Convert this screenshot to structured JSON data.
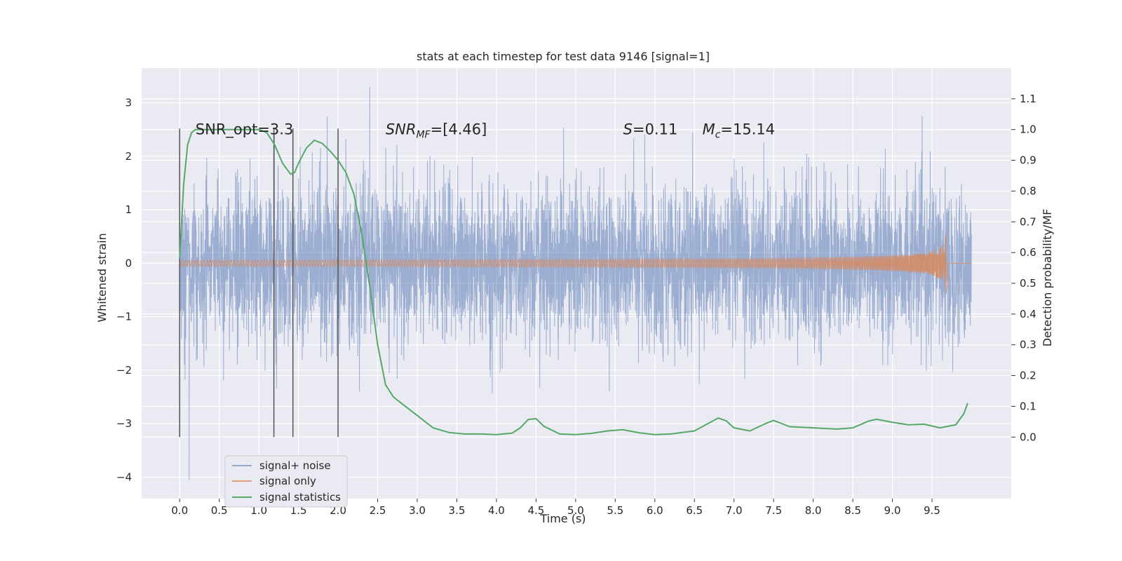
{
  "chart_data": {
    "type": "line",
    "title": "stats at each timestep for test data 9146 [signal=1]",
    "xlabel": "Time (s)",
    "ylabel_left": "Whitened strain",
    "ylabel_right": "Detection probability/MF",
    "xlim": [
      -0.48,
      10.5
    ],
    "ylim_left": [
      -4.4,
      3.65
    ],
    "ylim_right": [
      -0.2,
      1.2
    ],
    "xticks": [
      0.0,
      0.5,
      1.0,
      1.5,
      2.0,
      2.5,
      3.0,
      3.5,
      4.0,
      4.5,
      5.0,
      5.5,
      6.0,
      6.5,
      7.0,
      7.5,
      8.0,
      8.5,
      9.0,
      9.5
    ],
    "xtick_labels": [
      "0.0",
      "0.5",
      "1.0",
      "1.5",
      "2.0",
      "2.5",
      "3.0",
      "3.5",
      "4.0",
      "4.5",
      "5.0",
      "5.5",
      "6.0",
      "6.5",
      "7.0",
      "7.5",
      "8.0",
      "8.5",
      "9.0",
      "9.5"
    ],
    "yticks_left": [
      -4,
      -3,
      -2,
      -1,
      0,
      1,
      2,
      3
    ],
    "ytick_labels_left": [
      "−4",
      "−3",
      "−2",
      "−1",
      "0",
      "1",
      "2",
      "3"
    ],
    "yticks_right": [
      0.0,
      0.1,
      0.2,
      0.3,
      0.4,
      0.5,
      0.6,
      0.7,
      0.8,
      0.9,
      1.0,
      1.1
    ],
    "ytick_labels_right": [
      "0.0",
      "0.1",
      "0.2",
      "0.3",
      "0.4",
      "0.5",
      "0.6",
      "0.7",
      "0.8",
      "0.9",
      "1.0",
      "1.1"
    ],
    "grid": true,
    "legend_position": "lower-left",
    "annotations": [
      {
        "text": "SNR_opt=3.3",
        "x": 0.2,
        "y": 2.5
      },
      {
        "text": "SNR",
        "sub": "MF",
        "tail": "=[4.46]",
        "italic_head": true,
        "x": 2.6,
        "y": 2.5
      },
      {
        "text": "S",
        "tail": "=0.11",
        "italic_head": true,
        "x": 5.6,
        "y": 2.5
      },
      {
        "text": "M",
        "sub": "c",
        "tail": "=15.14",
        "italic_head": true,
        "x": 6.6,
        "y": 2.5
      }
    ],
    "vertical_lines_x": [
      0.0,
      1.19,
      1.43,
      2.0
    ],
    "vertical_lines_ylim": [
      -3.25,
      2.52
    ],
    "series": [
      {
        "name": "signal+ noise",
        "color": "#4c72b0",
        "kind": "noise",
        "x_range": [
          0.0,
          10.0
        ],
        "typical_envelope": [
          -1.45,
          1.35
        ],
        "max": 3.3,
        "min": -4.05
      },
      {
        "name": "signal only",
        "color": "#dd8452",
        "kind": "chirp",
        "x_range": [
          0.0,
          10.0
        ],
        "peak_time": 9.68,
        "peak_amplitude": 0.65
      },
      {
        "name": "signal statistics",
        "color": "#55a868",
        "axis": "right",
        "x": [
          0.0,
          0.05,
          0.1,
          0.15,
          0.2,
          0.3,
          0.5,
          0.8,
          1.0,
          1.1,
          1.2,
          1.3,
          1.4,
          1.45,
          1.5,
          1.6,
          1.7,
          1.8,
          1.9,
          2.0,
          2.1,
          2.2,
          2.3,
          2.4,
          2.5,
          2.6,
          2.7,
          2.8,
          3.0,
          3.2,
          3.4,
          3.6,
          3.8,
          4.0,
          4.2,
          4.3,
          4.4,
          4.5,
          4.6,
          4.8,
          5.0,
          5.2,
          5.4,
          5.6,
          5.8,
          6.0,
          6.2,
          6.5,
          6.7,
          6.8,
          6.9,
          7.0,
          7.2,
          7.4,
          7.5,
          7.7,
          8.0,
          8.3,
          8.5,
          8.7,
          8.8,
          9.0,
          9.2,
          9.4,
          9.6,
          9.8,
          9.9,
          9.95
        ],
        "values": [
          0.58,
          0.82,
          0.95,
          0.99,
          1.0,
          1.0,
          1.0,
          1.0,
          1.0,
          0.99,
          0.95,
          0.89,
          0.855,
          0.86,
          0.89,
          0.94,
          0.965,
          0.955,
          0.93,
          0.9,
          0.86,
          0.79,
          0.66,
          0.49,
          0.3,
          0.17,
          0.13,
          0.11,
          0.07,
          0.03,
          0.015,
          0.01,
          0.01,
          0.008,
          0.013,
          0.03,
          0.057,
          0.06,
          0.035,
          0.01,
          0.008,
          0.012,
          0.02,
          0.024,
          0.014,
          0.008,
          0.01,
          0.02,
          0.048,
          0.062,
          0.053,
          0.03,
          0.02,
          0.044,
          0.054,
          0.034,
          0.03,
          0.026,
          0.03,
          0.052,
          0.058,
          0.048,
          0.04,
          0.042,
          0.03,
          0.04,
          0.075,
          0.11
        ]
      }
    ]
  }
}
